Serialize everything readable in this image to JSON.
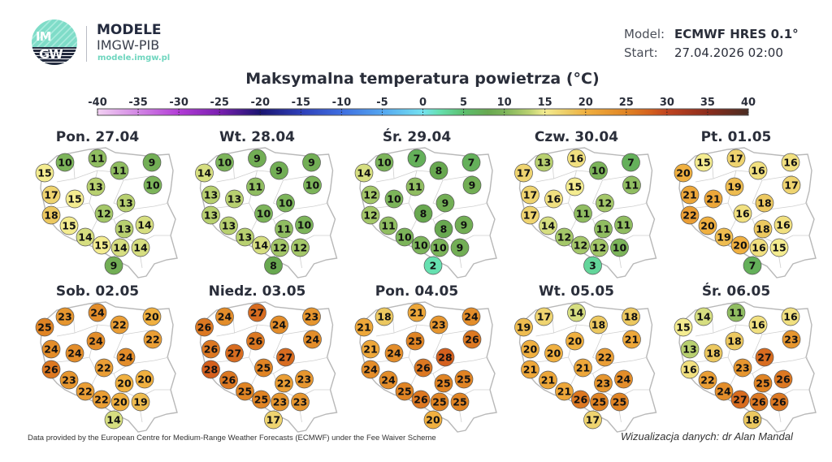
{
  "header": {
    "logo_text": "IMGW",
    "brand_title": "MODELE",
    "brand_subtitle": "IMGW-PIB",
    "brand_url": "modele.imgw.pl",
    "model_label": "Model:",
    "model_value": "ECMWF HRES 0.1°",
    "start_label": "Start:",
    "start_value": "27.04.2026 02:00"
  },
  "chart_data": {
    "type": "map-point-values",
    "title": "Maksymalna temperatura powietrza (°C)",
    "colorbar": {
      "ticks": [
        "-40",
        "-35",
        "-30",
        "-25",
        "-20",
        "-15",
        "-10",
        "-5",
        "0",
        "5",
        "10",
        "15",
        "20",
        "25",
        "30",
        "35",
        "40"
      ],
      "range": [
        -40,
        40
      ],
      "stops": [
        {
          "v": -40,
          "c": "#f2d0f2"
        },
        {
          "v": -30,
          "c": "#b23cd6"
        },
        {
          "v": -25,
          "c": "#7a1fb0"
        },
        {
          "v": -20,
          "c": "#1a1470"
        },
        {
          "v": -15,
          "c": "#2e3fb8"
        },
        {
          "v": -10,
          "c": "#3f6ee0"
        },
        {
          "v": -5,
          "c": "#54a6f0"
        },
        {
          "v": 0,
          "c": "#74e2f0"
        },
        {
          "v": 2,
          "c": "#66e0b0"
        },
        {
          "v": 5,
          "c": "#5cbf6e"
        },
        {
          "v": 8,
          "c": "#68a850"
        },
        {
          "v": 10,
          "c": "#7cb45a"
        },
        {
          "v": 13,
          "c": "#b8d070"
        },
        {
          "v": 15,
          "c": "#f4ec90"
        },
        {
          "v": 18,
          "c": "#ecc860"
        },
        {
          "v": 20,
          "c": "#f0b040"
        },
        {
          "v": 25,
          "c": "#e08424"
        },
        {
          "v": 28,
          "c": "#d4601e"
        },
        {
          "v": 30,
          "c": "#c04420"
        },
        {
          "v": 35,
          "c": "#8c2c1c"
        },
        {
          "v": 40,
          "c": "#4a2c22"
        }
      ]
    },
    "maps": [
      {
        "title": "Pon. 27.04",
        "values": [
          10,
          11,
          9,
          15,
          11,
          10,
          13,
          17,
          15,
          13,
          12,
          18,
          14,
          13,
          15,
          14,
          15,
          14,
          14,
          9
        ]
      },
      {
        "title": "Wt. 28.04",
        "values": [
          10,
          9,
          9,
          14,
          9,
          10,
          11,
          13,
          13,
          10,
          10,
          13,
          10,
          11,
          13,
          13,
          14,
          12,
          12,
          8
        ]
      },
      {
        "title": "Śr. 29.04",
        "values": [
          10,
          7,
          7,
          14,
          8,
          9,
          11,
          12,
          10,
          9,
          8,
          12,
          9,
          8,
          11,
          10,
          10,
          10,
          9,
          2
        ]
      },
      {
        "title": "Czw. 30.04",
        "values": [
          13,
          16,
          7,
          17,
          10,
          11,
          15,
          17,
          16,
          12,
          11,
          17,
          11,
          11,
          14,
          12,
          12,
          12,
          10,
          3
        ]
      },
      {
        "title": "Pt. 01.05",
        "values": [
          15,
          17,
          16,
          20,
          16,
          17,
          19,
          21,
          21,
          18,
          16,
          22,
          16,
          18,
          20,
          19,
          20,
          16,
          15,
          7
        ]
      },
      {
        "title": "Sob. 02.05",
        "values": [
          23,
          24,
          20,
          25,
          22,
          22,
          24,
          24,
          24,
          24,
          22,
          26,
          20,
          20,
          23,
          22,
          22,
          20,
          19,
          14
        ]
      },
      {
        "title": "Niedz. 03.05",
        "values": [
          24,
          27,
          23,
          26,
          24,
          24,
          26,
          26,
          27,
          27,
          25,
          28,
          23,
          22,
          26,
          25,
          25,
          23,
          23,
          17
        ]
      },
      {
        "title": "Pon. 04.05",
        "values": [
          18,
          21,
          24,
          21,
          23,
          26,
          25,
          21,
          24,
          28,
          26,
          24,
          25,
          25,
          24,
          25,
          26,
          25,
          25,
          20
        ]
      },
      {
        "title": "Wt. 05.05",
        "values": [
          17,
          14,
          18,
          19,
          18,
          21,
          20,
          20,
          20,
          22,
          21,
          21,
          24,
          23,
          21,
          21,
          26,
          25,
          25,
          17
        ]
      },
      {
        "title": "Śr. 06.05",
        "values": [
          14,
          11,
          16,
          15,
          16,
          23,
          18,
          13,
          18,
          27,
          23,
          16,
          26,
          25,
          22,
          24,
          27,
          26,
          26,
          18
        ]
      }
    ]
  },
  "footer": {
    "credit": "Data provided by the European Centre for Medium-Range Weather Forecasts (ECMWF) under the Fee Waiver Scheme",
    "author": "Wizualizacja danych: dr Alan Mandal"
  }
}
